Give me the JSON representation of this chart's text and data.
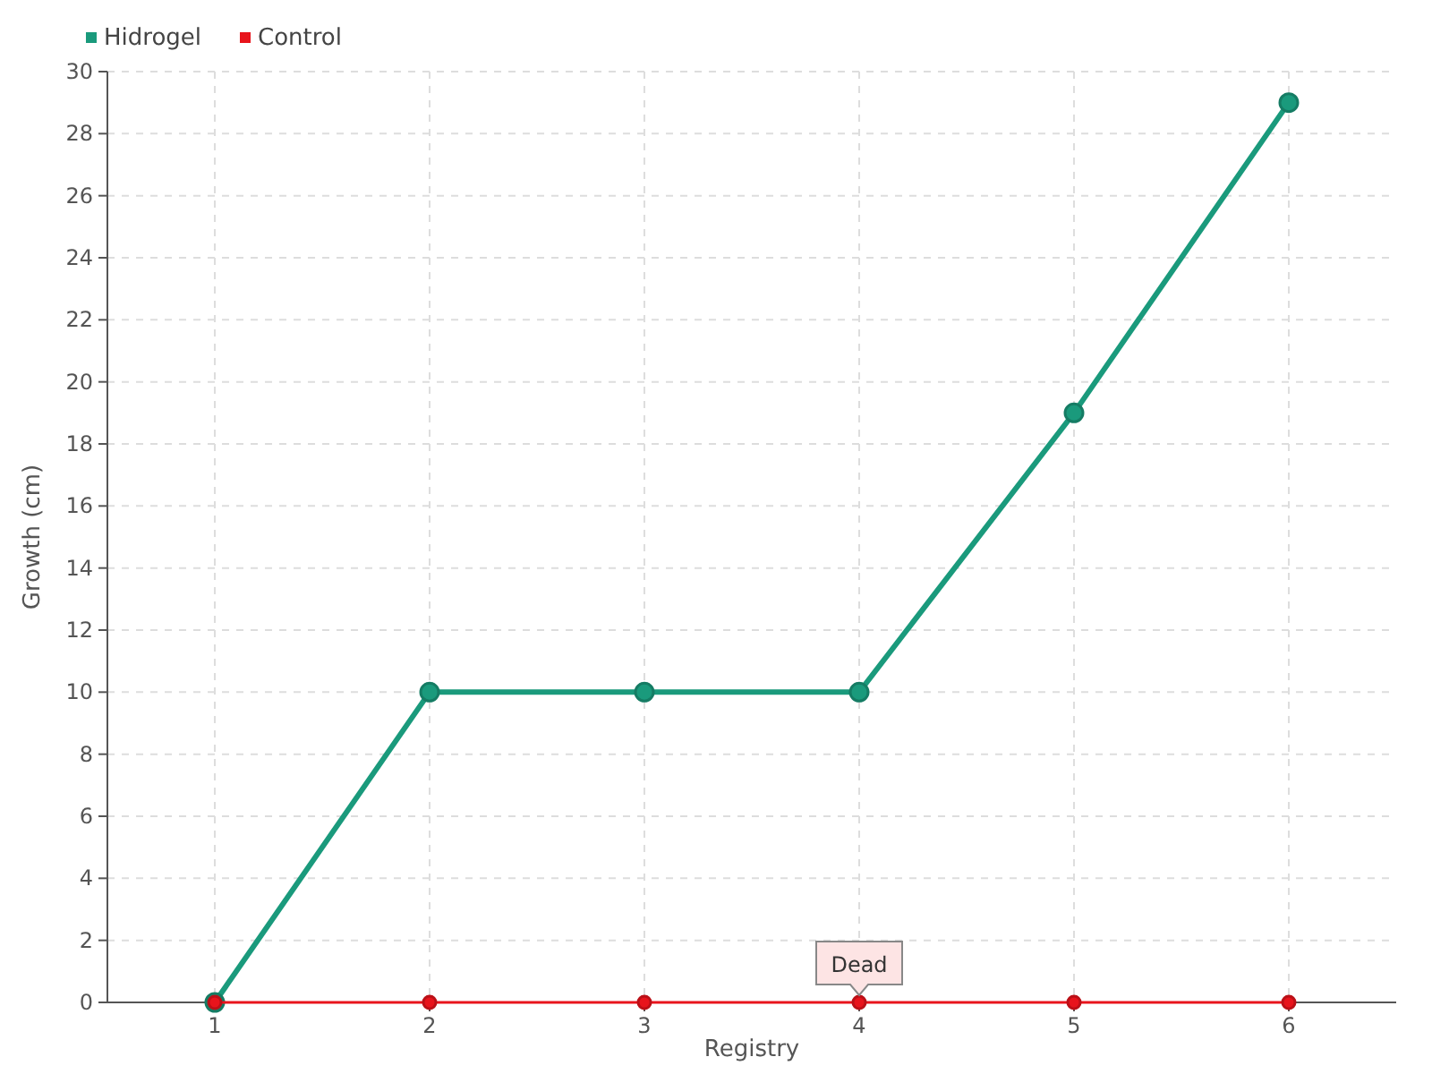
{
  "chart_data": {
    "type": "line",
    "xlabel": "Registry",
    "ylabel": "Growth (cm)",
    "x": [
      1,
      2,
      3,
      4,
      5,
      6
    ],
    "xlim": [
      0.5,
      6.5
    ],
    "xticks": [
      1,
      2,
      3,
      4,
      5,
      6
    ],
    "ylim": [
      0,
      30
    ],
    "yticks": [
      0,
      2,
      4,
      6,
      8,
      10,
      12,
      14,
      16,
      18,
      20,
      22,
      24,
      26,
      28,
      30
    ],
    "grid": true,
    "legend": "top left",
    "marker": "circle",
    "series": [
      {
        "name": "Hidrogel",
        "color": "#1a9a7c",
        "values": [
          0,
          10,
          10,
          10,
          19,
          29
        ]
      },
      {
        "name": "Control",
        "color": "#e8141c",
        "values": [
          0,
          0,
          0,
          0,
          0,
          0
        ]
      }
    ],
    "annotations": [
      {
        "text": "Dead",
        "x": 4,
        "y": 0
      }
    ]
  }
}
